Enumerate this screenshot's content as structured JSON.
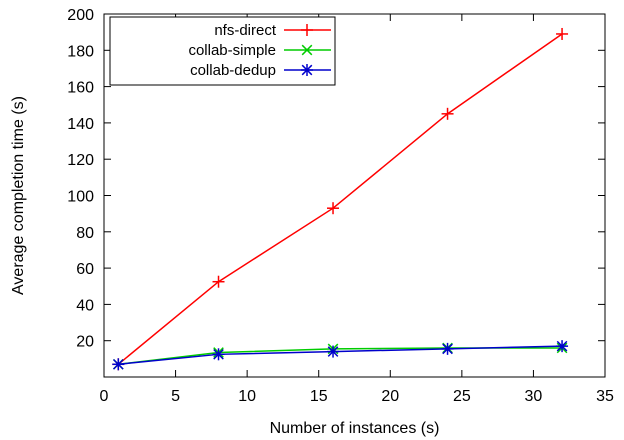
{
  "chart_data": {
    "type": "line",
    "title": "",
    "xlabel": "Number of instances (s)",
    "ylabel": "Average completion time (s)",
    "xlim": [
      0,
      35
    ],
    "ylim": [
      0,
      200
    ],
    "xticks": [
      0,
      5,
      10,
      15,
      20,
      25,
      30,
      35
    ],
    "yticks": [
      20,
      40,
      60,
      80,
      100,
      120,
      140,
      160,
      180,
      200
    ],
    "grid": false,
    "legend": "top-left",
    "series": [
      {
        "name": "nfs-direct",
        "color": "#ff0000",
        "marker": "plus",
        "x": [
          1,
          8,
          16,
          24,
          32
        ],
        "y": [
          7,
          52.5,
          93,
          145,
          189
        ]
      },
      {
        "name": "collab-simple",
        "color": "#00cc00",
        "marker": "cross",
        "x": [
          1,
          8,
          16,
          24,
          32
        ],
        "y": [
          7,
          13.5,
          15.5,
          16,
          16
        ]
      },
      {
        "name": "collab-dedup",
        "color": "#0000cc",
        "marker": "asterisk",
        "x": [
          1,
          8,
          16,
          24,
          32
        ],
        "y": [
          7,
          12.5,
          14,
          15.5,
          17
        ]
      }
    ]
  }
}
